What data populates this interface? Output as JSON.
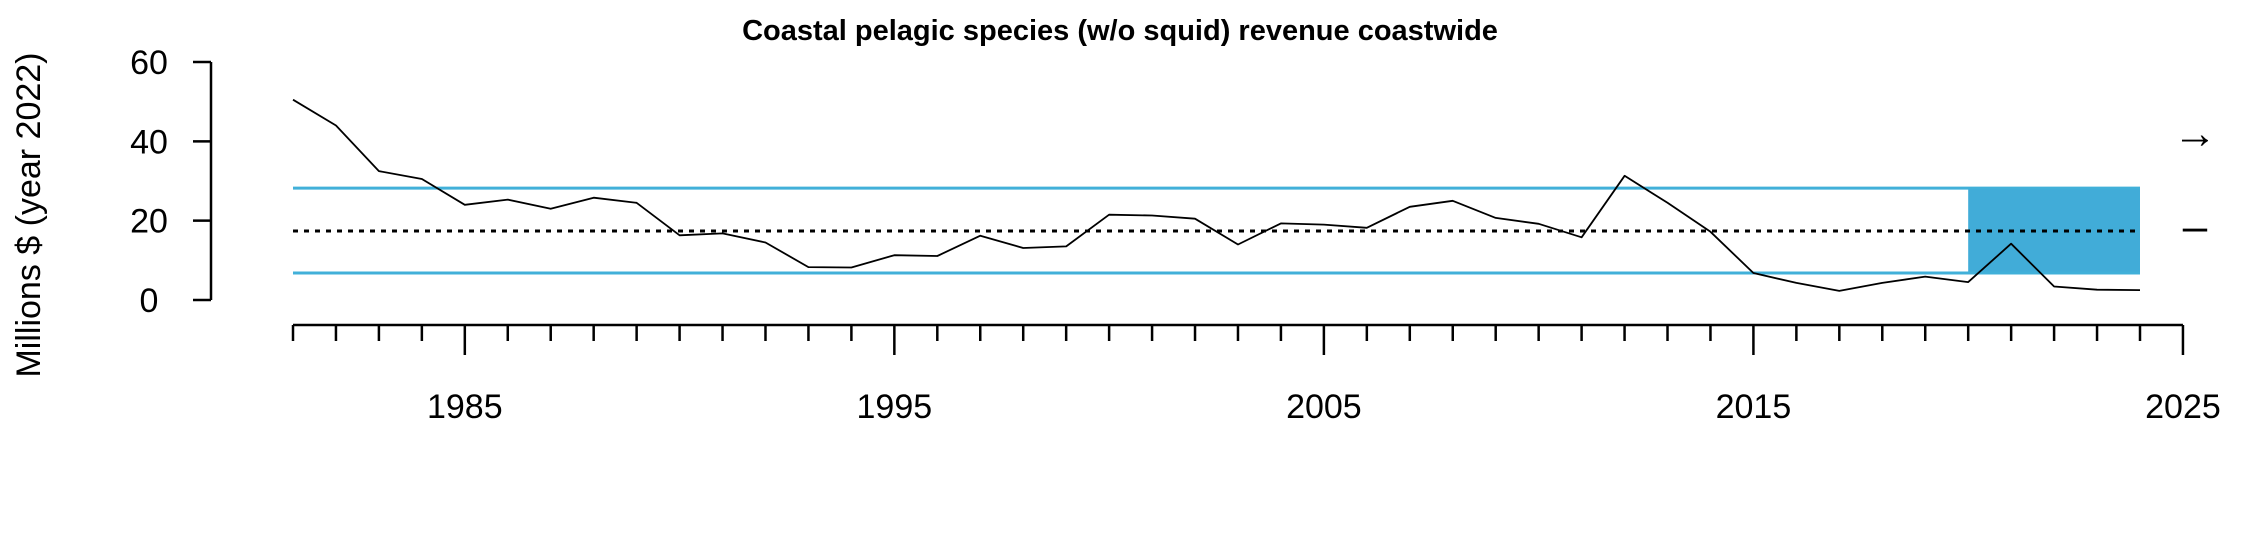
{
  "chart_data": {
    "type": "line",
    "title": "Coastal pelagic species (w/o squid) revenue coastwide",
    "xlabel": "",
    "ylabel": "Millions $ (year 2022)",
    "xlim": [
      1981,
      2025
    ],
    "ylim": [
      0,
      60
    ],
    "x_tick_labels": [
      "1985",
      "1995",
      "2005",
      "2015",
      "2025"
    ],
    "y_tick_labels": [
      "0",
      "20",
      "40",
      "60"
    ],
    "x_major_ticks": [
      1985,
      1995,
      2005,
      2015,
      2025
    ],
    "y_ticks": [
      0,
      20,
      40,
      60
    ],
    "series": [
      {
        "x": [
          1981,
          1982,
          1983,
          1984,
          1985,
          1986,
          1987,
          1988,
          1989,
          1990,
          1991,
          1992,
          1993,
          1994,
          1995,
          1996,
          1997,
          1998,
          1999,
          2000,
          2001,
          2002,
          2003,
          2004,
          2005,
          2006,
          2007,
          2008,
          2009,
          2010,
          2011,
          2012,
          2013,
          2014,
          2015,
          2016,
          2017,
          2018,
          2019,
          2020,
          2021,
          2022,
          2023,
          2024
        ],
        "values": [
          50.5,
          44,
          32.5,
          30.5,
          24,
          25.3,
          23,
          25.8,
          24.5,
          16.3,
          16.8,
          14.5,
          8.3,
          8.2,
          11.3,
          11.1,
          16.2,
          13.1,
          13.5,
          21.5,
          21.3,
          20.5,
          14,
          19.3,
          19,
          18.2,
          23.5,
          25,
          20.7,
          19.2,
          15.8,
          31.3,
          24.5,
          17.2,
          6.8,
          4.3,
          2.3,
          4.3,
          5.9,
          4.5,
          14.2,
          3.4,
          2.6,
          2.5
        ]
      }
    ],
    "reference_lines": {
      "mean": 17.4,
      "upper_sd": 28.2,
      "lower_sd": 6.8
    },
    "highlight_period": [
      2020,
      2024
    ],
    "trend_indicator": "→",
    "mean_indicator": "–",
    "colors": {
      "line": "#000000",
      "sd_lines": "#41b0d9",
      "highlight": "#41acd8",
      "mean_line": "#000000"
    }
  }
}
